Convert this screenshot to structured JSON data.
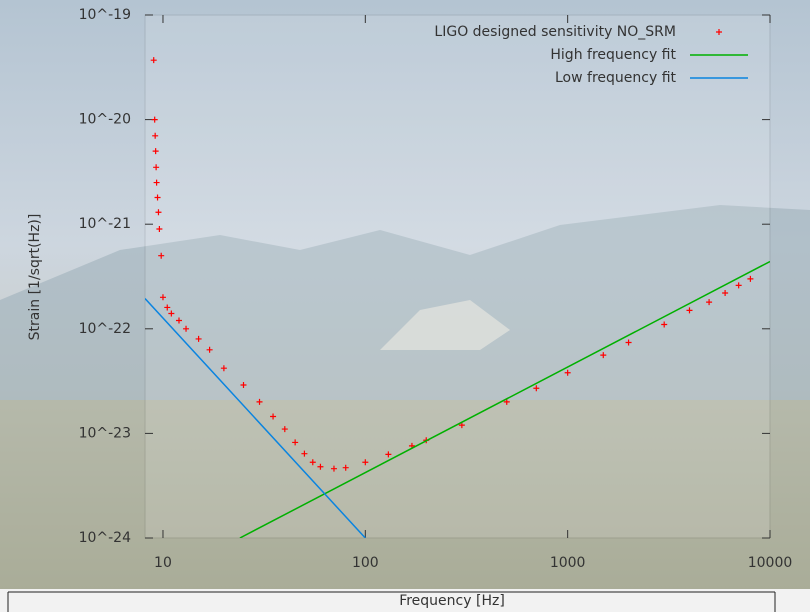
{
  "chart_data": {
    "type": "scatter",
    "x_label": "Frequency [Hz]",
    "y_label": "Strain [1/sqrt(Hz)]",
    "log_x": true,
    "log_y": true,
    "xlim": [
      8.15,
      10000
    ],
    "ylim": [
      1e-24,
      1e-19
    ],
    "xticks": [
      10,
      100,
      1000,
      10000
    ],
    "yticks": [
      {
        "value": 1e-19,
        "label": "10^-19"
      },
      {
        "value": 1e-20,
        "label": "10^-20"
      },
      {
        "value": 1e-21,
        "label": "10^-21"
      },
      {
        "value": 1e-22,
        "label": "10^-22"
      },
      {
        "value": 1e-23,
        "label": "10^-23"
      },
      {
        "value": 1e-24,
        "label": "10^-24"
      }
    ],
    "legend": "top-right",
    "series": [
      {
        "name": "LIGO designed sensitivity NO_SRM",
        "color": "#ff0000",
        "style": "points",
        "x": [
          9.0,
          9.1,
          9.15,
          9.2,
          9.25,
          9.3,
          9.4,
          9.5,
          9.6,
          9.8,
          10,
          10.5,
          11,
          12,
          13,
          15,
          17,
          20,
          25,
          30,
          35,
          40,
          45,
          50,
          55,
          60,
          70,
          80,
          100,
          130,
          170,
          200,
          300,
          500,
          700,
          1000,
          1500,
          2000,
          3000,
          4000,
          5000,
          6000,
          7000,
          8000
        ],
        "values": [
          3.7e-20,
          1e-20,
          7e-21,
          5e-21,
          3.5e-21,
          2.5e-21,
          1.8e-21,
          1.3e-21,
          9e-22,
          5e-22,
          2e-22,
          1.6e-22,
          1.4e-22,
          1.2e-22,
          1e-22,
          8e-23,
          6.3e-23,
          4.2e-23,
          2.9e-23,
          2e-23,
          1.45e-23,
          1.1e-23,
          8.2e-24,
          6.4e-24,
          5.3e-24,
          4.8e-24,
          4.6e-24,
          4.7e-24,
          5.3e-24,
          6.3e-24,
          7.6e-24,
          8.6e-24,
          1.2e-23,
          2e-23,
          2.7e-23,
          3.8e-23,
          5.6e-23,
          7.4e-23,
          1.1e-22,
          1.5e-22,
          1.8e-22,
          2.2e-22,
          2.6e-22,
          3e-22
        ]
      },
      {
        "name": "High frequency fit",
        "color": "#00b000",
        "style": "line",
        "x": [
          24,
          10000
        ],
        "values": [
          1e-24,
          4.4e-22
        ]
      },
      {
        "name": "Low frequency fit",
        "color": "#0a84e0",
        "style": "line",
        "x": [
          8.15,
          100
        ],
        "values": [
          1.95e-22,
          1e-24
        ]
      }
    ]
  }
}
